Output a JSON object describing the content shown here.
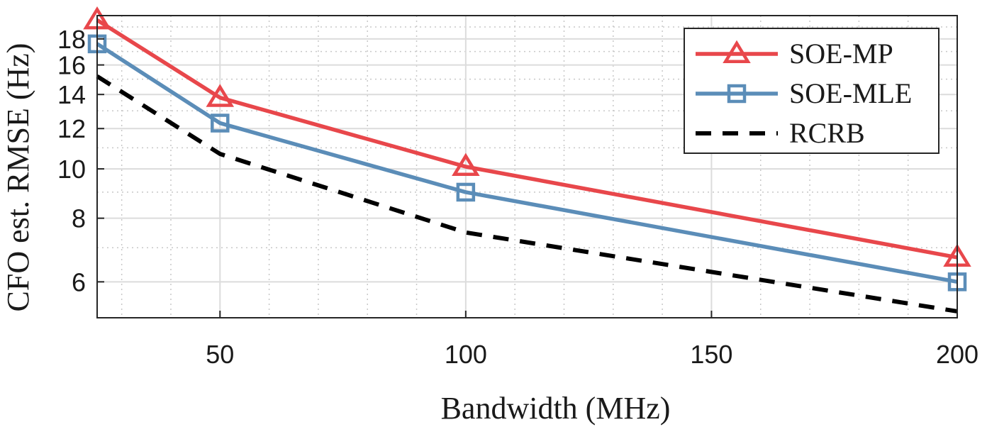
{
  "chart_data": {
    "type": "line",
    "title": "",
    "xlabel": "Bandwidth (MHz)",
    "ylabel": "CFO est. RMSE (Hz)",
    "xlim": [
      25,
      200
    ],
    "ylim": [
      5.1,
      20
    ],
    "yscale": "log",
    "grid": true,
    "minor_grid": true,
    "legend_position": "top-right",
    "x_ticks": [
      50,
      100,
      150,
      200
    ],
    "x_tick_labels": [
      "50",
      "100",
      "150",
      "200"
    ],
    "y_ticks": [
      6,
      8,
      10,
      12,
      14,
      16,
      18
    ],
    "y_tick_labels": [
      "6",
      "8",
      "10",
      "12",
      "14",
      "16",
      "18"
    ],
    "x": [
      25,
      50,
      100,
      200
    ],
    "series": [
      {
        "name": "SOE-MP",
        "values": [
          19.6,
          13.8,
          10.1,
          6.7
        ],
        "color": "#e8474b",
        "marker": "triangle",
        "line_style": "solid"
      },
      {
        "name": "SOE-MLE",
        "values": [
          17.6,
          12.3,
          9.0,
          6.0
        ],
        "color": "#5b8db8",
        "marker": "square",
        "line_style": "solid"
      },
      {
        "name": "RCRB",
        "values": [
          15.2,
          10.7,
          7.5,
          5.25
        ],
        "color": "#000000",
        "marker": "none",
        "line_style": "dashed"
      }
    ]
  }
}
